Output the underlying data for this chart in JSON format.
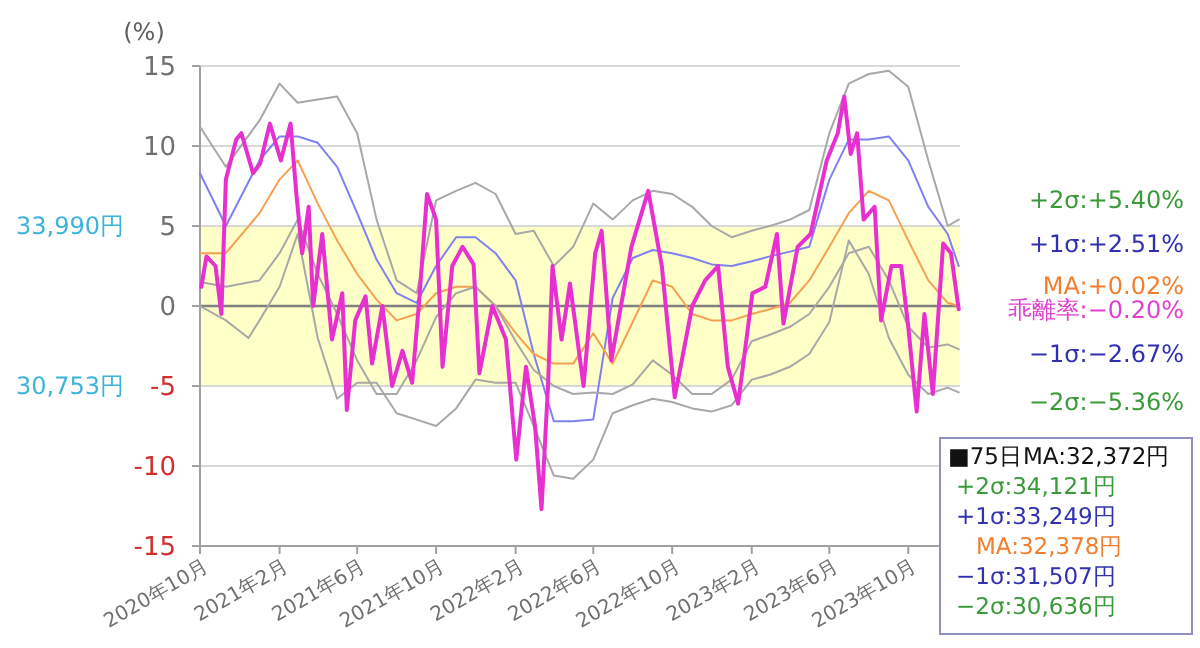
{
  "chart_data": {
    "type": "line",
    "ylabel": "(%)",
    "xlim": [
      "2020-10-01",
      "2023-12-20"
    ],
    "ylim": [
      -15,
      15
    ],
    "yticks": [
      -15,
      -10,
      -5,
      0,
      5,
      10,
      15
    ],
    "xticks": [
      {
        "value": "2020-10",
        "label": "2020年10月"
      },
      {
        "value": "2021-02",
        "label": "2021年2月"
      },
      {
        "value": "2021-06",
        "label": "2021年6月"
      },
      {
        "value": "2021-10",
        "label": "2021年10月"
      },
      {
        "value": "2022-02",
        "label": "2022年2月"
      },
      {
        "value": "2022-06",
        "label": "2022年6月"
      },
      {
        "value": "2022-10",
        "label": "2022年10月"
      },
      {
        "value": "2023-02",
        "label": "2023年2月"
      },
      {
        "value": "2023-06",
        "label": "2023年6月"
      },
      {
        "value": "2023-10",
        "label": "2023年10月"
      }
    ],
    "grid": "y",
    "line_style": "solid",
    "bands": [
      {
        "axis": "y",
        "from": -5,
        "to": 5,
        "color": "#ffffc8"
      }
    ],
    "ref_lines": [
      {
        "axis": "y",
        "value": 0,
        "color": "#808080"
      }
    ],
    "series": [
      {
        "color": "#a8a8a8",
        "x": [
          "2020-10-01",
          "2020-11-10",
          "2021-01-01",
          "2021-02-01",
          "2021-03-01",
          "2021-04-01",
          "2021-05-01",
          "2021-06-01",
          "2021-07-01",
          "2021-08-01",
          "2021-09-01",
          "2021-10-01",
          "2021-11-01",
          "2021-12-01",
          "2022-01-01",
          "2022-02-01",
          "2022-03-01",
          "2022-04-01",
          "2022-05-01",
          "2022-06-01",
          "2022-07-01",
          "2022-08-01",
          "2022-09-01",
          "2022-10-01",
          "2022-11-01",
          "2022-12-01",
          "2023-01-01",
          "2023-02-01",
          "2023-03-01",
          "2023-04-01",
          "2023-05-01",
          "2023-06-01",
          "2023-07-01",
          "2023-08-01",
          "2023-09-01",
          "2023-10-01",
          "2023-11-01",
          "2023-12-01",
          "2023-12-18"
        ],
        "values": [
          11.2,
          8.7,
          11.6,
          13.9,
          12.7,
          12.9,
          13.1,
          10.8,
          5.4,
          1.6,
          0.8,
          6.6,
          7.2,
          7.7,
          7.0,
          4.5,
          4.7,
          2.5,
          3.7,
          6.4,
          5.4,
          6.6,
          7.2,
          7.0,
          6.2,
          5.0,
          4.3,
          4.7,
          5.0,
          5.4,
          6.0,
          10.8,
          13.9,
          14.5,
          14.7,
          13.7,
          9.1,
          5.0,
          5.4
        ]
      },
      {
        "color": "#8080f0",
        "x": [
          "2020-10-01",
          "2020-11-10",
          "2021-01-01",
          "2021-02-01",
          "2021-03-01",
          "2021-04-01",
          "2021-05-01",
          "2021-06-01",
          "2021-07-01",
          "2021-08-01",
          "2021-09-01",
          "2021-10-01",
          "2021-11-01",
          "2021-12-01",
          "2022-01-01",
          "2022-02-01",
          "2022-03-01",
          "2022-04-01",
          "2022-05-01",
          "2022-06-01",
          "2022-07-01",
          "2022-08-01",
          "2022-09-01",
          "2022-10-01",
          "2022-11-01",
          "2022-12-01",
          "2023-01-01",
          "2023-02-01",
          "2023-03-01",
          "2023-04-01",
          "2023-05-01",
          "2023-06-01",
          "2023-07-01",
          "2023-08-01",
          "2023-09-01",
          "2023-10-01",
          "2023-11-01",
          "2023-12-01",
          "2023-12-18"
        ],
        "values": [
          8.3,
          5.0,
          9.1,
          10.6,
          10.6,
          10.2,
          8.7,
          5.8,
          2.9,
          0.8,
          0.2,
          2.5,
          4.3,
          4.3,
          3.3,
          1.6,
          -3.0,
          -7.2,
          -7.2,
          -7.1,
          0.5,
          3.0,
          3.5,
          3.3,
          3.0,
          2.6,
          2.5,
          2.8,
          3.1,
          3.4,
          3.7,
          7.9,
          10.4,
          10.4,
          10.6,
          9.1,
          6.2,
          4.5,
          2.5
        ]
      },
      {
        "color": "#f5a050",
        "x": [
          "2020-10-01",
          "2020-11-10",
          "2021-01-01",
          "2021-02-01",
          "2021-03-01",
          "2021-04-01",
          "2021-05-01",
          "2021-06-01",
          "2021-07-01",
          "2021-08-01",
          "2021-09-01",
          "2021-10-01",
          "2021-11-01",
          "2021-12-01",
          "2022-01-01",
          "2022-02-01",
          "2022-03-01",
          "2022-04-01",
          "2022-05-01",
          "2022-06-01",
          "2022-07-01",
          "2022-08-01",
          "2022-09-01",
          "2022-10-01",
          "2022-11-01",
          "2022-12-01",
          "2023-01-01",
          "2023-02-01",
          "2023-03-01",
          "2023-04-01",
          "2023-05-01",
          "2023-06-01",
          "2023-07-01",
          "2023-08-01",
          "2023-09-01",
          "2023-10-01",
          "2023-11-01",
          "2023-12-01",
          "2023-12-18"
        ],
        "values": [
          3.3,
          3.3,
          5.8,
          7.9,
          9.1,
          6.4,
          4.1,
          2.0,
          0.4,
          -0.9,
          -0.5,
          0.8,
          1.2,
          1.2,
          0.0,
          -1.7,
          -3.0,
          -3.6,
          -3.6,
          -1.7,
          -3.6,
          -1.0,
          1.6,
          1.2,
          -0.5,
          -0.9,
          -0.9,
          -0.5,
          -0.2,
          0.2,
          1.6,
          3.7,
          5.8,
          7.2,
          6.6,
          4.1,
          1.6,
          0.2,
          0.0
        ]
      },
      {
        "color": "#a8a8a8",
        "x": [
          "2020-10-01",
          "2020-11-10",
          "2021-01-01",
          "2021-02-01",
          "2021-03-01",
          "2021-04-01",
          "2021-05-01",
          "2021-06-01",
          "2021-07-01",
          "2021-08-01",
          "2021-09-01",
          "2021-10-01",
          "2021-11-01",
          "2021-12-01",
          "2022-01-01",
          "2022-02-01",
          "2022-03-01",
          "2022-04-01",
          "2022-05-01",
          "2022-06-01",
          "2022-07-01",
          "2022-08-01",
          "2022-09-01",
          "2022-10-01",
          "2022-11-01",
          "2022-12-01",
          "2023-01-01",
          "2023-02-01",
          "2023-03-01",
          "2023-04-01",
          "2023-05-01",
          "2023-06-01",
          "2023-07-01",
          "2023-08-01",
          "2023-09-01",
          "2023-10-01",
          "2023-11-01",
          "2023-12-01",
          "2023-12-18"
        ],
        "values": [
          1.5,
          1.2,
          1.6,
          3.3,
          5.4,
          2.0,
          -0.5,
          -3.4,
          -5.5,
          -5.5,
          -3.4,
          -0.7,
          0.8,
          1.2,
          0.0,
          -2.2,
          -4.0,
          -5.0,
          -5.5,
          -5.4,
          -5.5,
          -4.9,
          -3.4,
          -4.3,
          -5.5,
          -5.5,
          -4.6,
          -2.2,
          -1.8,
          -1.3,
          -0.5,
          1.2,
          3.3,
          3.7,
          1.6,
          -1.3,
          -2.6,
          -2.4,
          -2.7
        ]
      },
      {
        "color": "#a8a8a8",
        "x": [
          "2020-10-01",
          "2020-11-10",
          "2020-12-15",
          "2021-01-01",
          "2021-02-01",
          "2021-03-01",
          "2021-04-01",
          "2021-05-01",
          "2021-06-01",
          "2021-07-01",
          "2021-08-01",
          "2021-09-01",
          "2021-10-01",
          "2021-11-01",
          "2021-12-01",
          "2022-01-01",
          "2022-02-01",
          "2022-03-01",
          "2022-04-01",
          "2022-05-01",
          "2022-06-01",
          "2022-07-01",
          "2022-08-01",
          "2022-09-01",
          "2022-10-01",
          "2022-11-01",
          "2022-12-01",
          "2023-01-01",
          "2023-02-01",
          "2023-03-01",
          "2023-04-01",
          "2023-05-01",
          "2023-06-01",
          "2023-07-01",
          "2023-08-01",
          "2023-09-01",
          "2023-10-01",
          "2023-11-01",
          "2023-12-01",
          "2023-12-18"
        ],
        "values": [
          0.0,
          -0.9,
          -2.0,
          -0.9,
          1.2,
          4.5,
          -2.0,
          -5.8,
          -4.8,
          -4.8,
          -6.7,
          -7.1,
          -7.5,
          -6.4,
          -4.6,
          -4.8,
          -4.8,
          -7.5,
          -10.6,
          -10.8,
          -9.6,
          -6.7,
          -6.2,
          -5.8,
          -6.0,
          -6.4,
          -6.6,
          -6.2,
          -4.6,
          -4.3,
          -3.8,
          -3.0,
          -1.0,
          4.1,
          2.0,
          -2.0,
          -4.3,
          -5.5,
          -5.1,
          -5.4
        ]
      },
      {
        "color": "#e830d0",
        "x": [
          "2020-10-03",
          "2020-10-11",
          "2020-10-25",
          "2020-11-03",
          "2020-11-10",
          "2020-11-26",
          "2020-12-04",
          "2020-12-22",
          "2021-01-02",
          "2021-01-17",
          "2021-02-03",
          "2021-02-18",
          "2021-02-27",
          "2021-03-08",
          "2021-03-18",
          "2021-03-25",
          "2021-04-08",
          "2021-04-23",
          "2021-05-09",
          "2021-05-16",
          "2021-05-29",
          "2021-06-14",
          "2021-06-24",
          "2021-07-10",
          "2021-07-25",
          "2021-08-10",
          "2021-08-25",
          "2021-09-05",
          "2021-09-17",
          "2021-10-01",
          "2021-10-11",
          "2021-10-26",
          "2021-11-11",
          "2021-11-28",
          "2021-12-07",
          "2021-12-27",
          "2022-01-17",
          "2022-02-02",
          "2022-02-17",
          "2022-03-03",
          "2022-03-13",
          "2022-03-23",
          "2022-03-30",
          "2022-04-13",
          "2022-04-26",
          "2022-05-17",
          "2022-06-04",
          "2022-06-14",
          "2022-06-29",
          "2022-07-30",
          "2022-08-25",
          "2022-09-15",
          "2022-10-05",
          "2022-11-01",
          "2022-11-21",
          "2022-12-11",
          "2022-12-26",
          "2023-01-11",
          "2023-02-02",
          "2023-02-22",
          "2023-03-12",
          "2023-03-22",
          "2023-04-13",
          "2023-05-03",
          "2023-05-28",
          "2023-06-14",
          "2023-06-24",
          "2023-07-04",
          "2023-07-14",
          "2023-07-24",
          "2023-08-10",
          "2023-08-20",
          "2023-09-05",
          "2023-09-20",
          "2023-10-01",
          "2023-10-14",
          "2023-10-26",
          "2023-11-08",
          "2023-11-24",
          "2023-12-06",
          "2023-12-18"
        ],
        "values": [
          1.2,
          3.1,
          2.5,
          -0.5,
          7.9,
          10.4,
          10.8,
          8.3,
          8.9,
          11.4,
          9.1,
          11.4,
          7.0,
          3.3,
          6.2,
          0.0,
          4.5,
          -2.1,
          0.8,
          -6.5,
          -0.9,
          0.6,
          -3.6,
          0.0,
          -5.0,
          -2.8,
          -4.8,
          0.4,
          7.0,
          5.4,
          -3.8,
          2.5,
          3.7,
          2.6,
          -4.2,
          0.0,
          -2.1,
          -9.6,
          -3.8,
          -7.5,
          -12.7,
          -5.0,
          2.5,
          -2.1,
          1.4,
          -5.0,
          3.3,
          4.7,
          -3.4,
          3.7,
          7.2,
          2.5,
          -5.7,
          0.0,
          1.6,
          2.5,
          -3.8,
          -6.1,
          0.8,
          1.2,
          4.5,
          -1.1,
          3.7,
          4.5,
          9.1,
          10.8,
          13.1,
          9.5,
          10.8,
          5.4,
          6.2,
          -0.9,
          2.5,
          2.5,
          -1.3,
          -6.6,
          -0.5,
          -5.5,
          3.9,
          3.3,
          -0.2
        ]
      }
    ],
    "annotations": [
      "33,990円",
      "30,753円",
      "+2σ:+5.40%",
      "+1σ:+2.51%",
      "MA:+0.02%",
      "乖離率:−0.20%",
      "−1σ:−2.67%",
      "−2σ:−5.36%",
      "■75日MA:32,372円",
      "+2σ:34,121円",
      "+1σ:33,249円",
      "MA:32,378円",
      "−1σ:31,507円",
      "−2σ:30,636円"
    ]
  }
}
